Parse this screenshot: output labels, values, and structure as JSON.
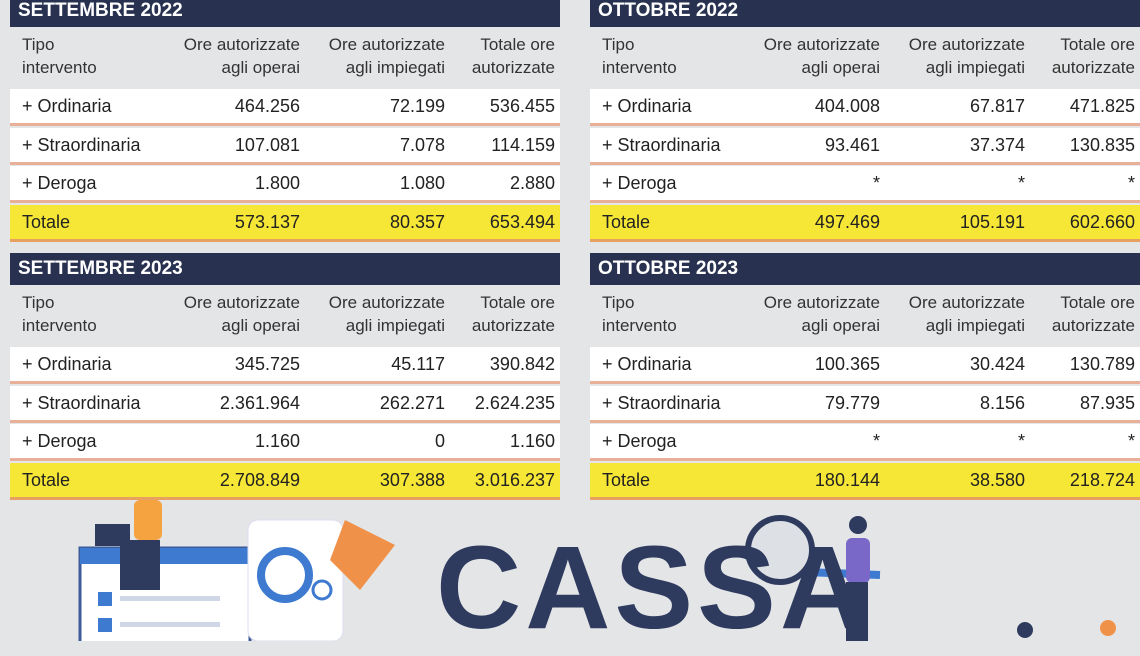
{
  "tables": [
    {
      "title": "SETTEMBRE 2022",
      "columns": [
        [
          "Tipo",
          "intervento"
        ],
        [
          "Ore autorizzate",
          "agli operai"
        ],
        [
          "Ore autorizzate",
          "agli impiegati"
        ],
        [
          "Totale ore",
          "autorizzate"
        ]
      ],
      "rows": [
        [
          "+ Ordinaria",
          "464.256",
          "72.199",
          "536.455"
        ],
        [
          "+ Straordinaria",
          "107.081",
          "7.078",
          "114.159"
        ],
        [
          "+ Deroga",
          "1.800",
          "1.080",
          "2.880"
        ],
        [
          "Totale",
          "573.137",
          "80.357",
          "653.494"
        ]
      ]
    },
    {
      "title": "OTTOBRE 2022",
      "columns": [
        [
          "Tipo",
          "intervento"
        ],
        [
          "Ore autorizzate",
          "agli operai"
        ],
        [
          "Ore autorizzate",
          "agli impiegati"
        ],
        [
          "Totale ore",
          "autorizzate"
        ]
      ],
      "rows": [
        [
          "+ Ordinaria",
          "404.008",
          "67.817",
          "471.825"
        ],
        [
          "+ Straordinaria",
          "93.461",
          "37.374",
          "130.835"
        ],
        [
          "+ Deroga",
          "*",
          "*",
          "*"
        ],
        [
          "Totale",
          "497.469",
          "105.191",
          "602.660"
        ]
      ]
    },
    {
      "title": "SETTEMBRE 2023",
      "columns": [
        [
          "Tipo",
          "intervento"
        ],
        [
          "Ore autorizzate",
          "agli operai"
        ],
        [
          "Ore autorizzate",
          "agli impiegati"
        ],
        [
          "Totale ore",
          "autorizzate"
        ]
      ],
      "rows": [
        [
          "+ Ordinaria",
          "345.725",
          "45.117",
          "390.842"
        ],
        [
          "+ Straordinaria",
          "2.361.964",
          "262.271",
          "2.624.235"
        ],
        [
          "+ Deroga",
          "1.160",
          "0",
          "1.160"
        ],
        [
          "Totale",
          "2.708.849",
          "307.388",
          "3.016.237"
        ]
      ]
    },
    {
      "title": "OTTOBRE 2023",
      "columns": [
        [
          "Tipo",
          "intervento"
        ],
        [
          "Ore autorizzate",
          "agli operai"
        ],
        [
          "Ore autorizzate",
          "agli impiegati"
        ],
        [
          "Totale ore",
          "autorizzate"
        ]
      ],
      "rows": [
        [
          "+ Ordinaria",
          "100.365",
          "30.424",
          "130.789"
        ],
        [
          "+ Straordinaria",
          "79.779",
          "8.156",
          "87.935"
        ],
        [
          "+ Deroga",
          "*",
          "*",
          "*"
        ],
        [
          "Totale",
          "180.144",
          "38.580",
          "218.724"
        ]
      ]
    }
  ],
  "banner": "CASSA"
}
